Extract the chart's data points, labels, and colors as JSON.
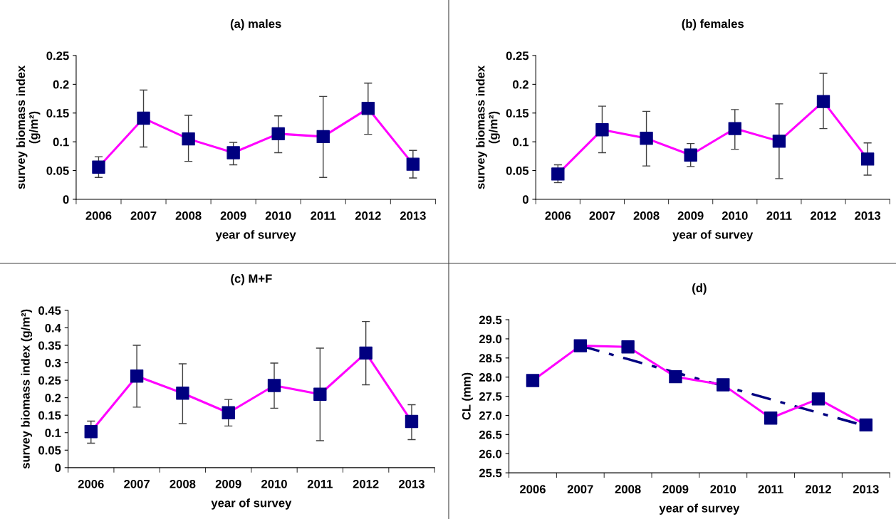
{
  "chart_data": [
    {
      "type": "line",
      "title": "(a) males",
      "xlabel": "year of survey",
      "ylabel": "survey biomass index\n(g/m²)",
      "categories": [
        "2006",
        "2007",
        "2008",
        "2009",
        "2010",
        "2011",
        "2012",
        "2013"
      ],
      "ylim": [
        0,
        0.25
      ],
      "yticks": [
        0,
        0.05,
        0.1,
        0.15,
        0.2,
        0.25
      ],
      "grid": false,
      "legend": false,
      "marker": "square",
      "line_style": "solid",
      "series": [
        {
          "color": "#ff00ff",
          "colors": [
            "#000080",
            "#000080",
            "#000080",
            "#000080",
            "#000080",
            "#000080",
            "#000080",
            "#000080"
          ],
          "values": [
            0.056,
            0.141,
            0.105,
            0.081,
            0.114,
            0.109,
            0.158,
            0.061
          ],
          "errors": [
            [
              0.038,
              0.074
            ],
            [
              0.091,
              0.19
            ],
            [
              0.066,
              0.146
            ],
            [
              0.06,
              0.099
            ],
            [
              0.081,
              0.145
            ],
            [
              0.038,
              0.179
            ],
            [
              0.113,
              0.202
            ],
            [
              0.037,
              0.085
            ]
          ]
        }
      ]
    },
    {
      "type": "line",
      "title": "(b) females",
      "xlabel": "year of survey",
      "ylabel": "survey biomass index\n(g/m²)",
      "categories": [
        "2006",
        "2007",
        "2008",
        "2009",
        "2010",
        "2011",
        "2012",
        "2013"
      ],
      "ylim": [
        0,
        0.25
      ],
      "yticks": [
        0,
        0.05,
        0.1,
        0.15,
        0.2,
        0.25
      ],
      "grid": false,
      "legend": false,
      "marker": "square",
      "line_style": "solid",
      "series": [
        {
          "color": "#ff00ff",
          "colors": [
            "#000080",
            "#000080",
            "#000080",
            "#000080",
            "#000080",
            "#000080",
            "#000080",
            "#000080"
          ],
          "values": [
            0.044,
            0.121,
            0.106,
            0.077,
            0.123,
            0.101,
            0.17,
            0.07
          ],
          "errors": [
            [
              0.029,
              0.06
            ],
            [
              0.081,
              0.162
            ],
            [
              0.058,
              0.153
            ],
            [
              0.057,
              0.097
            ],
            [
              0.087,
              0.156
            ],
            [
              0.036,
              0.166
            ],
            [
              0.123,
              0.219
            ],
            [
              0.042,
              0.098
            ]
          ]
        }
      ]
    },
    {
      "type": "line",
      "title": "(c) M+F",
      "xlabel": "year of survey",
      "ylabel": "survey biomass index (g/m²)",
      "categories": [
        "2006",
        "2007",
        "2008",
        "2009",
        "2010",
        "2011",
        "2012",
        "2013"
      ],
      "ylim": [
        0,
        0.45
      ],
      "yticks": [
        0,
        0.05,
        0.1,
        0.15,
        0.2,
        0.25,
        0.3,
        0.35,
        0.4,
        0.45
      ],
      "grid": false,
      "legend": false,
      "marker": "square",
      "line_style": "solid",
      "series": [
        {
          "color": "#ff00ff",
          "colors": [
            "#000080",
            "#000080",
            "#000080",
            "#000080",
            "#000080",
            "#000080",
            "#000080",
            "#000080"
          ],
          "values": [
            0.103,
            0.262,
            0.213,
            0.157,
            0.235,
            0.21,
            0.328,
            0.132
          ],
          "errors": [
            [
              0.07,
              0.133
            ],
            [
              0.173,
              0.35
            ],
            [
              0.126,
              0.297
            ],
            [
              0.119,
              0.195
            ],
            [
              0.17,
              0.299
            ],
            [
              0.077,
              0.342
            ],
            [
              0.237,
              0.418
            ],
            [
              0.08,
              0.18
            ]
          ]
        }
      ]
    },
    {
      "type": "line",
      "title": "(d)",
      "xlabel": "year of survey",
      "ylabel": "CL (mm)",
      "categories": [
        "2006",
        "2007",
        "2008",
        "2009",
        "2010",
        "2011",
        "2012",
        "2013"
      ],
      "ylim": [
        25.5,
        29.5
      ],
      "yticks": [
        {
          "value": 25.5,
          "label": "25.5"
        },
        {
          "value": 26,
          "label": "26.0"
        },
        {
          "value": 26.5,
          "label": "26.5"
        },
        {
          "value": 27,
          "label": "27.0"
        },
        {
          "value": 27.5,
          "label": "27.5"
        },
        {
          "value": 28,
          "label": "28.0"
        },
        {
          "value": 28.5,
          "label": "28.5"
        },
        {
          "value": 29,
          "label": "29.0"
        },
        {
          "value": 29.5,
          "label": "29.5"
        }
      ],
      "grid": false,
      "legend": false,
      "marker": "square",
      "line_style": "solid",
      "series": [
        {
          "type": "line",
          "color": "#000080",
          "line_style": "dashed",
          "marker": "none",
          "values": [
            null,
            28.82,
            28.47,
            28.12,
            27.77,
            27.42,
            27.07,
            26.72
          ]
        },
        {
          "color": "#ff00ff",
          "colors": [
            "#000080",
            "#000080",
            "#000080",
            "#000080",
            "#000080",
            "#000080",
            "#000080",
            "#000080"
          ],
          "values": [
            27.91,
            28.82,
            28.79,
            28.01,
            27.8,
            26.93,
            27.43,
            26.75
          ]
        }
      ]
    }
  ]
}
